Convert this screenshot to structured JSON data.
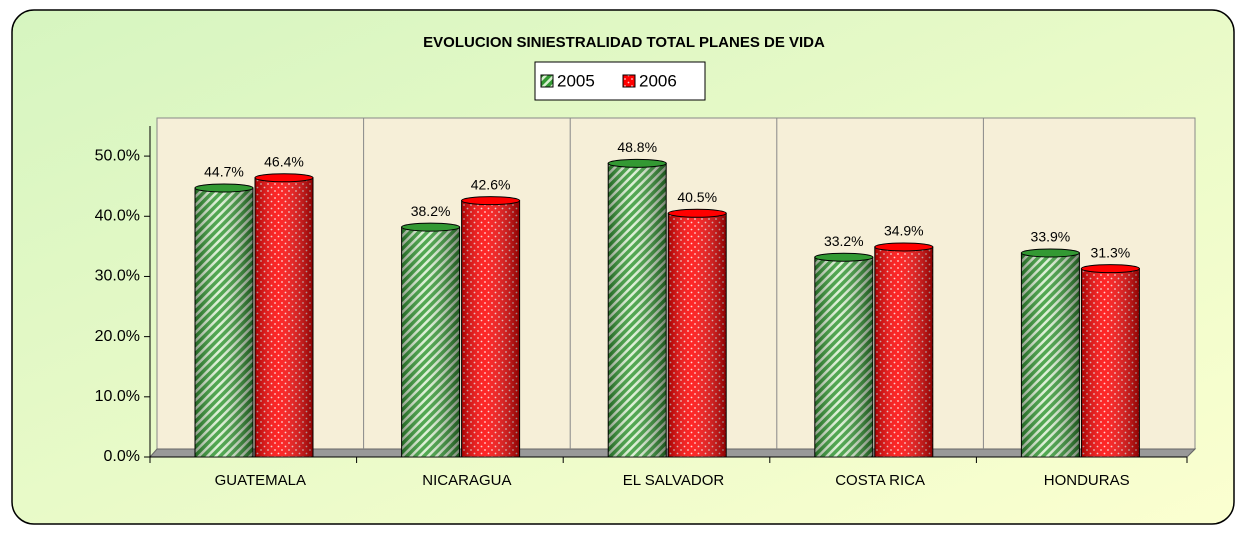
{
  "chart_data": {
    "type": "bar",
    "title": "EVOLUCION SINIESTRALIDAD TOTAL PLANES DE VIDA",
    "categories": [
      "GUATEMALA",
      "NICARAGUA",
      "EL SALVADOR",
      "COSTA RICA",
      "HONDURAS"
    ],
    "series": [
      {
        "name": "2005",
        "color": "#339933",
        "values": [
          44.7,
          38.2,
          48.8,
          33.2,
          33.9
        ],
        "value_labels": [
          "44.7%",
          "38.2%",
          "48.8%",
          "33.2%",
          "33.9%"
        ]
      },
      {
        "name": "2006",
        "color": "#ff0000",
        "values": [
          46.4,
          42.6,
          40.5,
          34.9,
          31.3
        ],
        "value_labels": [
          "46.4%",
          "42.6%",
          "40.5%",
          "34.9%",
          "31.3%"
        ]
      }
    ],
    "ylim": [
      0,
      55
    ],
    "yticks": [
      {
        "value": 0,
        "label": "0.0%"
      },
      {
        "value": 10,
        "label": "10.0%"
      },
      {
        "value": 20,
        "label": "20.0%"
      },
      {
        "value": 30,
        "label": "30.0%"
      },
      {
        "value": 40,
        "label": "40.0%"
      },
      {
        "value": 50,
        "label": "50.0%"
      }
    ],
    "legend": "top",
    "grid": false
  }
}
